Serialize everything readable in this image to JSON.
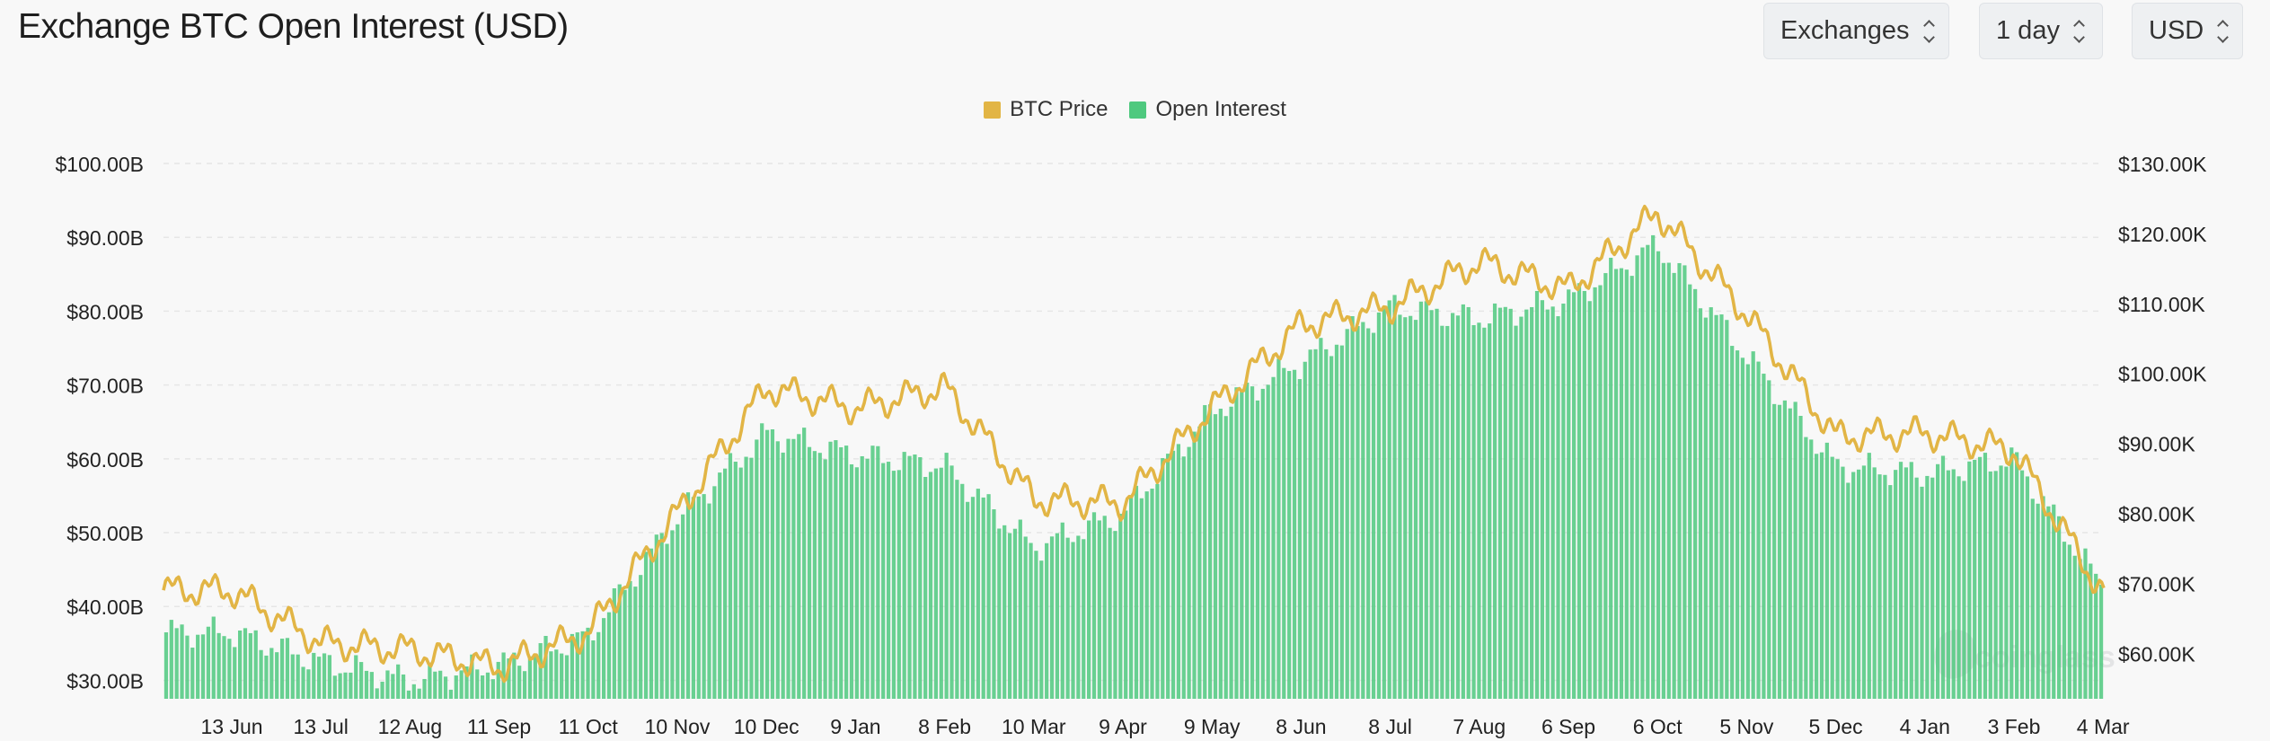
{
  "title": "Exchange BTC Open Interest (USD)",
  "controls": {
    "exchanges": "Exchanges",
    "interval": "1 day",
    "currency": "USD"
  },
  "chart_data": {
    "type": "bar+line",
    "legend": [
      "BTC Price",
      "Open Interest"
    ],
    "colors": {
      "price": "#e2b545",
      "oi": "#4fc97f"
    },
    "x_tick_labels": [
      "13 Jun",
      "13 Jul",
      "12 Aug",
      "11 Sep",
      "11 Oct",
      "10 Nov",
      "10 Dec",
      "9 Jan",
      "8 Feb",
      "10 Mar",
      "9 Apr",
      "9 May",
      "8 Jun",
      "8 Jul",
      "7 Aug",
      "6 Sep",
      "6 Oct",
      "5 Nov",
      "5 Dec",
      "4 Jan",
      "3 Feb",
      "4 Mar"
    ],
    "left_axis": {
      "labels": [
        "$100.00B",
        "$90.00B",
        "$80.00B",
        "$70.00B",
        "$60.00B",
        "$50.00B",
        "$40.00B",
        "$30.00B"
      ],
      "ylim": [
        27.5,
        100
      ]
    },
    "right_axis": {
      "labels": [
        "$130.00K",
        "$120.00K",
        "$110.00K",
        "$100.00K",
        "$90.00K",
        "$80.00K",
        "$70.00K",
        "$60.00K"
      ],
      "ylim": [
        53.5,
        130
      ]
    },
    "series": [
      {
        "name": "Open Interest",
        "axis": "left",
        "unit": "USD billions",
        "x": [
          "13 Jun",
          "13 Jul",
          "12 Aug",
          "11 Sep",
          "11 Oct",
          "10 Nov",
          "10 Dec",
          "9 Jan",
          "8 Feb",
          "10 Mar",
          "9 Apr",
          "9 May",
          "8 Jun",
          "8 Jul",
          "7 Aug",
          "6 Sep",
          "6 Oct",
          "5 Nov",
          "5 Dec",
          "4 Jan",
          "3 Feb",
          "4 Mar"
        ],
        "values": [
          36.5,
          32.5,
          30.0,
          32.0,
          36.0,
          52.0,
          63.5,
          60.5,
          59.0,
          48.0,
          52.5,
          66.5,
          73.0,
          80.5,
          79.0,
          81.5,
          89.0,
          74.0,
          59.0,
          58.0,
          60.0,
          42.5
        ]
      },
      {
        "name": "BTC Price",
        "axis": "right",
        "unit": "USD thousands",
        "x": [
          "13 Jun",
          "13 Jul",
          "12 Aug",
          "11 Sep",
          "11 Oct",
          "10 Nov",
          "10 Dec",
          "9 Jan",
          "8 Feb",
          "10 Mar",
          "9 Apr",
          "9 May",
          "8 Jun",
          "8 Jul",
          "7 Aug",
          "6 Sep",
          "6 Oct",
          "5 Nov",
          "5 Dec",
          "4 Jan",
          "3 Feb",
          "4 Mar"
        ],
        "values": [
          69.0,
          61.5,
          60.5,
          58.0,
          63.0,
          80.0,
          98.0,
          95.0,
          98.0,
          82.0,
          81.5,
          95.0,
          107.0,
          109.5,
          116.0,
          112.0,
          123.0,
          108.5,
          91.0,
          91.5,
          89.0,
          68.5
        ]
      }
    ],
    "watermark": "coinglass"
  }
}
